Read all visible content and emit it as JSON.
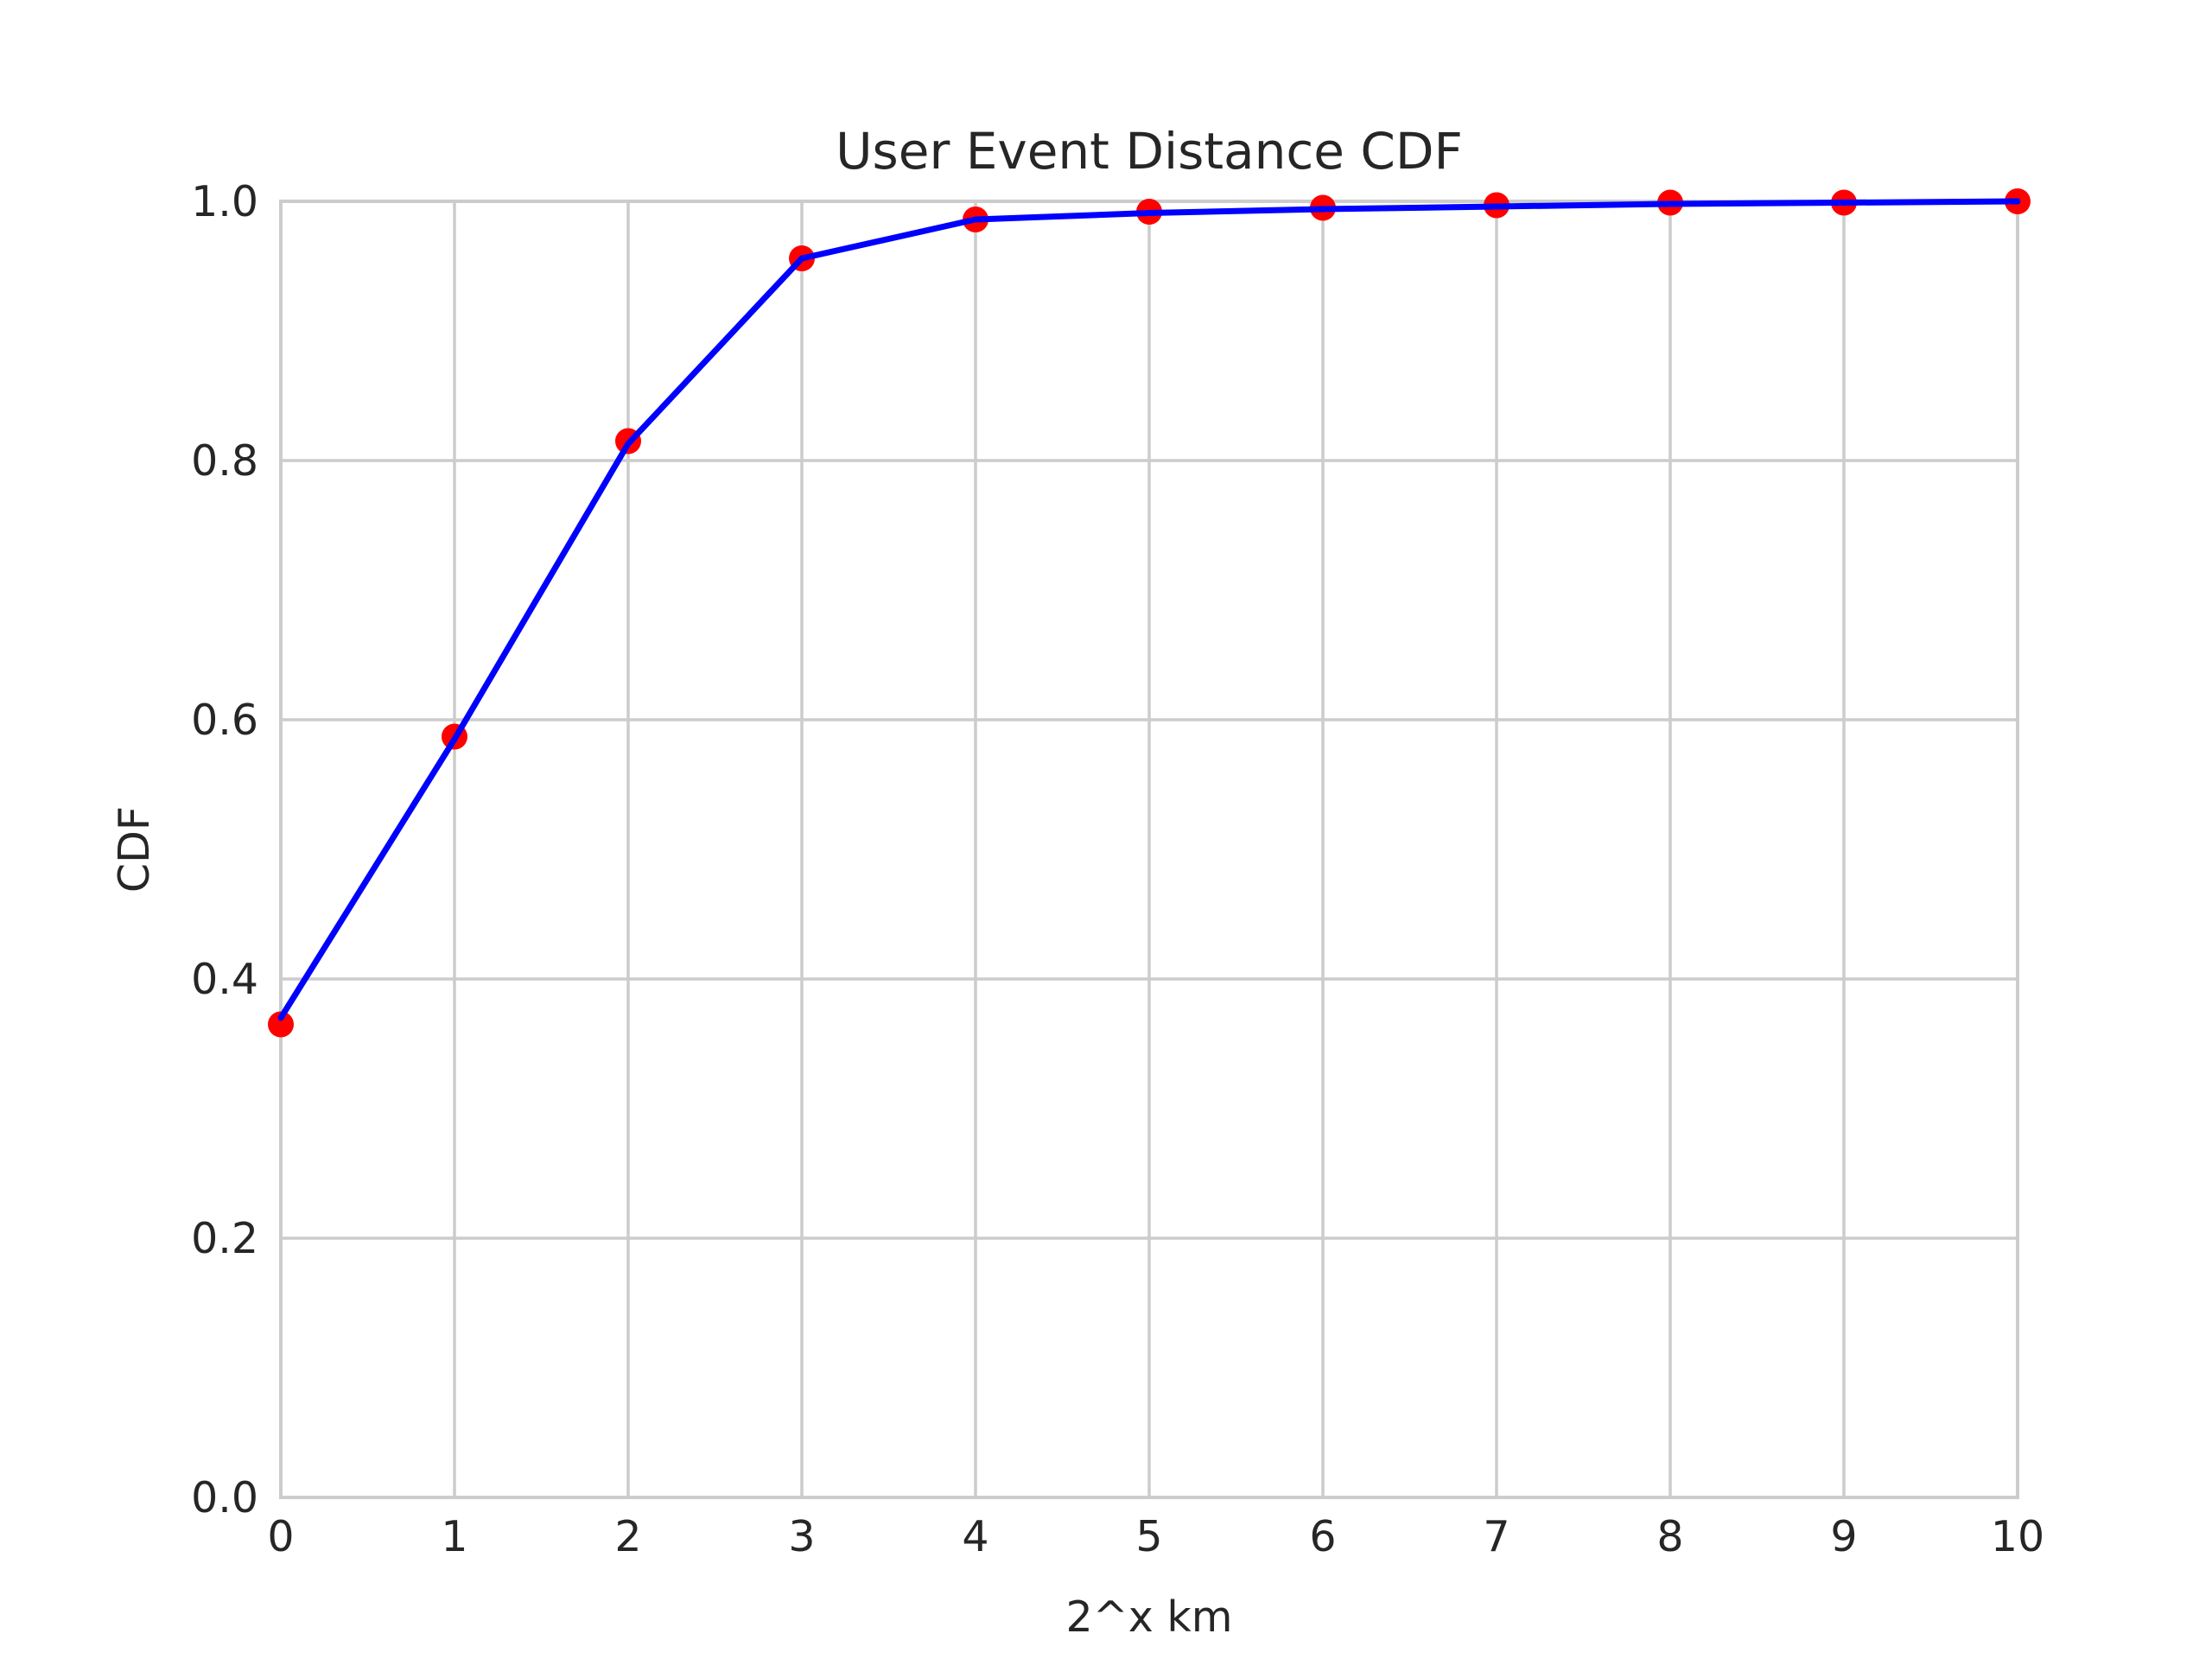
{
  "chart_data": {
    "type": "line",
    "title": "User Event Distance CDF",
    "xlabel": "2^x km",
    "ylabel": "CDF",
    "xlim": [
      0,
      10
    ],
    "ylim": [
      0,
      1.0
    ],
    "x_ticks": [
      "0",
      "1",
      "2",
      "3",
      "4",
      "5",
      "6",
      "7",
      "8",
      "9",
      "10"
    ],
    "y_ticks": [
      "0.0",
      "0.2",
      "0.4",
      "0.6",
      "0.8",
      "1.0"
    ],
    "grid": true,
    "x": [
      0,
      1,
      2,
      3,
      4,
      5,
      6,
      7,
      8,
      9,
      10
    ],
    "series": [
      {
        "render": "scatter",
        "color": "#ff0000",
        "values": [
          0.365,
          0.587,
          0.815,
          0.956,
          0.986,
          0.992,
          0.995,
          0.997,
          0.999,
          0.999,
          1.0
        ]
      },
      {
        "render": "line",
        "color": "#0000ff",
        "values": [
          0.37,
          0.585,
          0.813,
          0.956,
          0.986,
          0.991,
          0.994,
          0.996,
          0.998,
          0.999,
          1.0
        ]
      }
    ]
  }
}
